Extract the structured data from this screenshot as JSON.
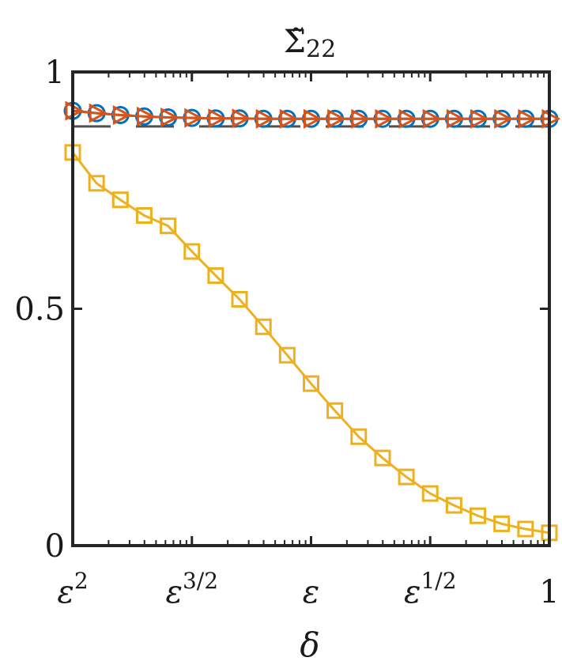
{
  "chart_data": {
    "type": "line",
    "title": "Σ̃",
    "title_subscript": "22",
    "xlabel": "δ",
    "ylabel": "",
    "xscale": "log",
    "xlim": [
      0,
      4
    ],
    "ylim": [
      0,
      1
    ],
    "x_ticks": [
      {
        "value": 0,
        "base": "ε",
        "sup": "2"
      },
      {
        "value": 1,
        "base": "ε",
        "sup": "3/2"
      },
      {
        "value": 2,
        "base": "ε",
        "sup": ""
      },
      {
        "value": 3,
        "base": "ε",
        "sup": "1/2"
      },
      {
        "value": 4,
        "base": "1",
        "sup": ""
      }
    ],
    "y_ticks": [
      {
        "value": 0,
        "label": "0"
      },
      {
        "value": 0.5,
        "label": "0.5"
      },
      {
        "value": 1,
        "label": "1"
      }
    ],
    "reference_line": {
      "y": 0.885,
      "color": "#505050",
      "style": "dashed"
    },
    "x": [
      0,
      0.2,
      0.4,
      0.6,
      0.8,
      1.0,
      1.2,
      1.4,
      1.6,
      1.8,
      2.0,
      2.2,
      2.4,
      2.6,
      2.8,
      3.0,
      3.2,
      3.4,
      3.6,
      3.8,
      4.0
    ],
    "series": [
      {
        "color": "#0072BD",
        "marker": "circle",
        "values": [
          0.918,
          0.913,
          0.909,
          0.906,
          0.904,
          0.903,
          0.902,
          0.902,
          0.901,
          0.901,
          0.901,
          0.901,
          0.901,
          0.901,
          0.901,
          0.901,
          0.901,
          0.901,
          0.901,
          0.901,
          0.901
        ]
      },
      {
        "color": "#D95319",
        "marker": "triangle-right",
        "values": [
          0.918,
          0.913,
          0.909,
          0.906,
          0.904,
          0.903,
          0.902,
          0.902,
          0.901,
          0.901,
          0.901,
          0.901,
          0.901,
          0.901,
          0.901,
          0.901,
          0.901,
          0.901,
          0.901,
          0.901,
          0.901
        ]
      },
      {
        "color": "#EDB120",
        "marker": "square",
        "values": [
          0.83,
          0.765,
          0.73,
          0.697,
          0.675,
          0.621,
          0.57,
          0.52,
          0.462,
          0.402,
          0.342,
          0.285,
          0.23,
          0.185,
          0.145,
          0.11,
          0.085,
          0.063,
          0.046,
          0.035,
          0.027
        ]
      }
    ]
  }
}
